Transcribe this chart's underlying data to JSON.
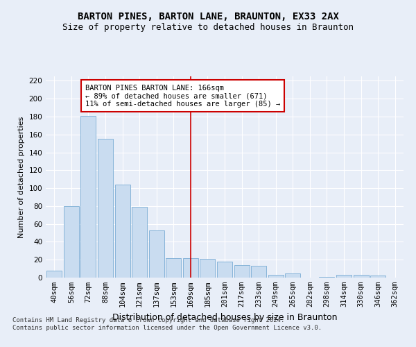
{
  "title": "BARTON PINES, BARTON LANE, BRAUNTON, EX33 2AX",
  "subtitle": "Size of property relative to detached houses in Braunton",
  "xlabel": "Distribution of detached houses by size in Braunton",
  "ylabel": "Number of detached properties",
  "categories": [
    "40sqm",
    "56sqm",
    "72sqm",
    "88sqm",
    "104sqm",
    "121sqm",
    "137sqm",
    "153sqm",
    "169sqm",
    "185sqm",
    "201sqm",
    "217sqm",
    "233sqm",
    "249sqm",
    "265sqm",
    "282sqm",
    "298sqm",
    "314sqm",
    "330sqm",
    "346sqm",
    "362sqm"
  ],
  "values": [
    8,
    80,
    181,
    155,
    104,
    79,
    53,
    22,
    22,
    21,
    18,
    14,
    13,
    3,
    5,
    0,
    1,
    3,
    3,
    2,
    0
  ],
  "bar_color": "#c9dcf0",
  "bar_edge_color": "#7aadd4",
  "red_line_index": 8,
  "annotation_text": "BARTON PINES BARTON LANE: 166sqm\n← 89% of detached houses are smaller (671)\n11% of semi-detached houses are larger (85) →",
  "annotation_box_color": "#ffffff",
  "annotation_border_color": "#cc0000",
  "red_line_color": "#cc0000",
  "ylim": [
    0,
    225
  ],
  "yticks": [
    0,
    20,
    40,
    60,
    80,
    100,
    120,
    140,
    160,
    180,
    200,
    220
  ],
  "background_color": "#e8eef8",
  "grid_color": "#ffffff",
  "footer_text": "Contains HM Land Registry data © Crown copyright and database right 2024.\nContains public sector information licensed under the Open Government Licence v3.0.",
  "title_fontsize": 10,
  "subtitle_fontsize": 9,
  "xlabel_fontsize": 9,
  "ylabel_fontsize": 8,
  "tick_fontsize": 7.5,
  "annotation_fontsize": 7.5,
  "footer_fontsize": 6.5
}
